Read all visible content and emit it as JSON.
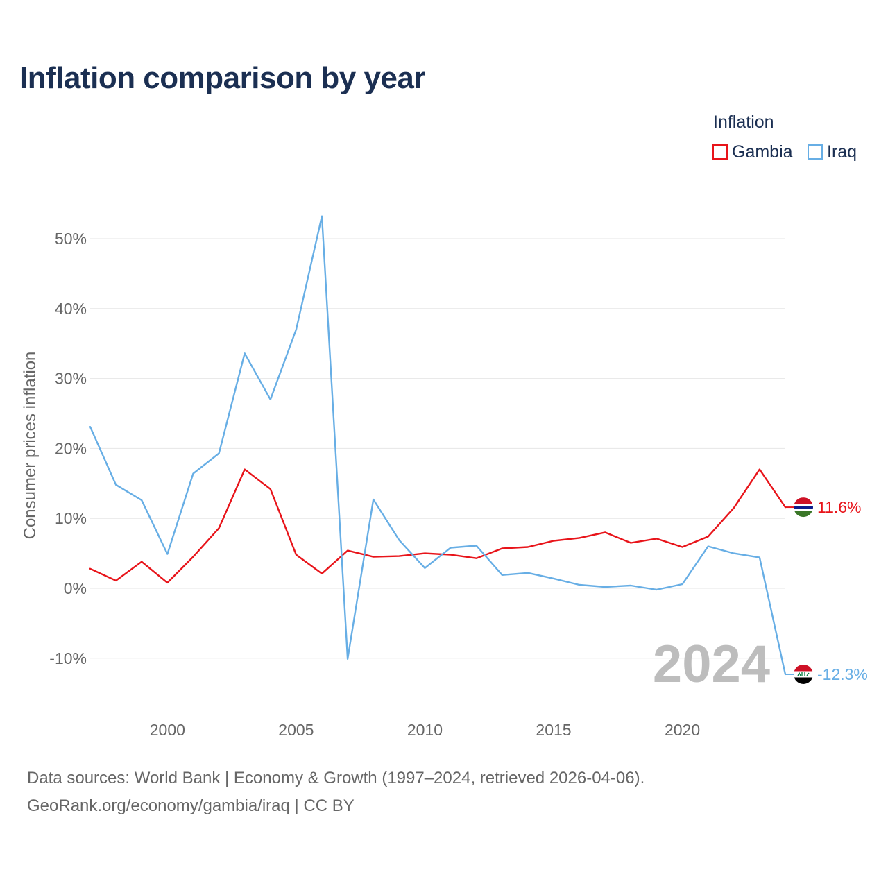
{
  "title": "Inflation comparison by year",
  "legend": {
    "title": "Inflation",
    "items": [
      {
        "label": "Gambia",
        "color": "#e8141a"
      },
      {
        "label": "Iraq",
        "color": "#67aee5"
      }
    ]
  },
  "source": {
    "line1": "Data sources: World Bank | Economy & Growth (1997–2024, retrieved 2026-04-06).",
    "line2": "GeoRank.org/economy/gambia/iraq | CC BY"
  },
  "chart_data": {
    "type": "line",
    "title": "Inflation comparison by year",
    "xlabel": "",
    "ylabel": "Consumer prices inflation",
    "xlim": [
      1997,
      2024
    ],
    "ylim": [
      -15,
      55
    ],
    "yticks": [
      -10,
      0,
      10,
      20,
      30,
      40,
      50
    ],
    "ytick_labels": [
      "-10%",
      "0%",
      "10%",
      "20%",
      "30%",
      "40%",
      "50%"
    ],
    "xticks": [
      2000,
      2005,
      2010,
      2015,
      2020
    ],
    "xtick_labels": [
      "2000",
      "2005",
      "2010",
      "2015",
      "2020"
    ],
    "grid": true,
    "legend_position": "top-right",
    "year_label": "2024",
    "x": [
      1997,
      1998,
      1999,
      2000,
      2001,
      2002,
      2003,
      2004,
      2005,
      2006,
      2007,
      2008,
      2009,
      2010,
      2011,
      2012,
      2013,
      2014,
      2015,
      2016,
      2017,
      2018,
      2019,
      2020,
      2021,
      2022,
      2023,
      2024
    ],
    "series": [
      {
        "name": "Gambia",
        "color": "#e8141a",
        "end_label": "11.6%",
        "values": [
          2.8,
          1.1,
          3.8,
          0.8,
          4.5,
          8.6,
          17.0,
          14.2,
          4.8,
          2.1,
          5.4,
          4.5,
          4.6,
          5.0,
          4.8,
          4.3,
          5.7,
          5.9,
          6.8,
          7.2,
          8.0,
          6.5,
          7.1,
          5.9,
          7.4,
          11.5,
          17.0,
          11.6
        ]
      },
      {
        "name": "Iraq",
        "color": "#67aee5",
        "end_label": "-12.3%",
        "values": [
          23.1,
          14.8,
          12.6,
          4.9,
          16.4,
          19.3,
          33.6,
          27.0,
          37.0,
          53.2,
          -10.1,
          12.7,
          6.9,
          2.9,
          5.8,
          6.1,
          1.9,
          2.2,
          1.4,
          0.5,
          0.2,
          0.4,
          -0.2,
          0.6,
          6.0,
          5.0,
          4.4,
          -12.3
        ]
      }
    ]
  }
}
